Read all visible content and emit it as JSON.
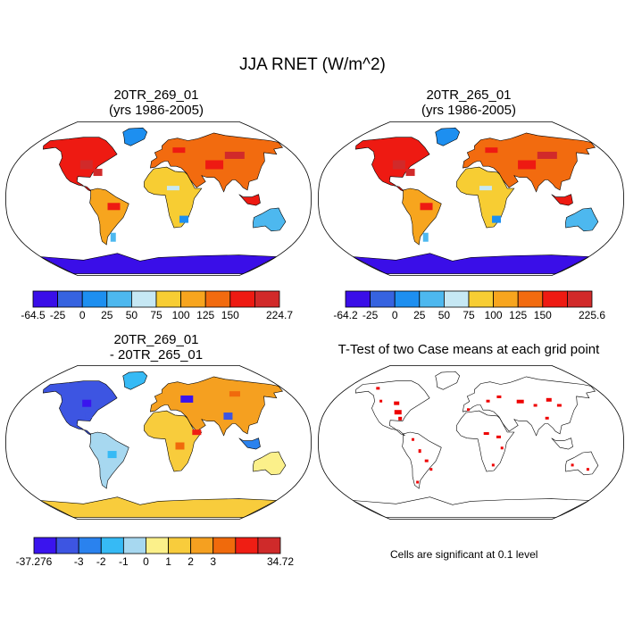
{
  "figure": {
    "title": "JJA RNET (W/m^2)"
  },
  "panels": {
    "top_left": {
      "title_line1": "20TR_269_01",
      "title_line2": "(yrs 1986-2005)"
    },
    "top_right": {
      "title_line1": "20TR_265_01",
      "title_line2": "(yrs 1986-2005)"
    },
    "bottom_left": {
      "title_line1": "20TR_269_01",
      "title_line2": "- 20TR_265_01"
    },
    "bottom_right": {
      "title_line1": "T-Test of two Case means at each grid point",
      "note": "Cells are significant at 0.1 level"
    }
  },
  "colorbars": {
    "cb1": {
      "colors": [
        "#3a0ee8",
        "#3663e0",
        "#1d8ff0",
        "#4db8ef",
        "#c6e8f4",
        "#f7cd33",
        "#f7a51e",
        "#f26b0f",
        "#ee1a12",
        "#d12a2a"
      ],
      "labels": [
        "-64.5",
        "-25",
        "0",
        "25",
        "50",
        "75",
        "100",
        "125",
        "150",
        "224.7"
      ]
    },
    "cb2": {
      "colors": [
        "#3a0ee8",
        "#3663e0",
        "#1d8ff0",
        "#4db8ef",
        "#c6e8f4",
        "#f7cd33",
        "#f7a51e",
        "#f26b0f",
        "#ee1a12",
        "#d12a2a"
      ],
      "labels": [
        "-64.2",
        "-25",
        "0",
        "25",
        "50",
        "75",
        "100",
        "125",
        "150",
        "225.6"
      ]
    },
    "cb3": {
      "colors": [
        "#3a14ee",
        "#3d55e2",
        "#2a82ee",
        "#36baf5",
        "#a7d8f0",
        "#fbf08a",
        "#f8cc3c",
        "#f5a020",
        "#f06a0c",
        "#ef1e14",
        "#cf2a2a"
      ],
      "labels": [
        "-37.276",
        "",
        "-3",
        "-2",
        "-1",
        "0",
        "1",
        "2",
        "3",
        "",
        "34.72"
      ]
    }
  }
}
